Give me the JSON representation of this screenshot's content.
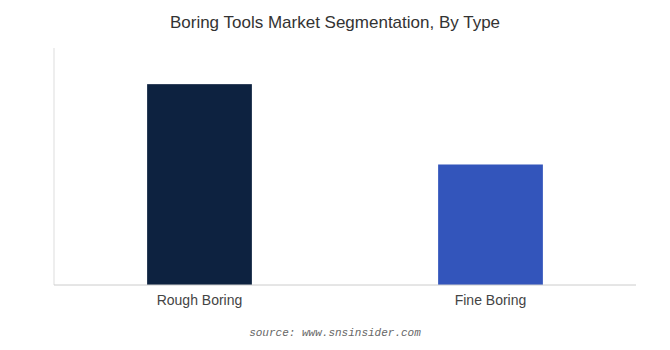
{
  "chart_data": {
    "type": "bar",
    "title": "Boring Tools Market Segmentation, By Type",
    "categories": [
      "Rough Boring",
      "Fine Boring"
    ],
    "values": [
      100,
      60
    ],
    "colors": [
      "#0d2240",
      "#3355bb"
    ],
    "ylim": [
      0,
      118
    ],
    "grid": false,
    "tick_labels": "x",
    "annotations": [
      "source: www.snsinsider.com"
    ]
  }
}
